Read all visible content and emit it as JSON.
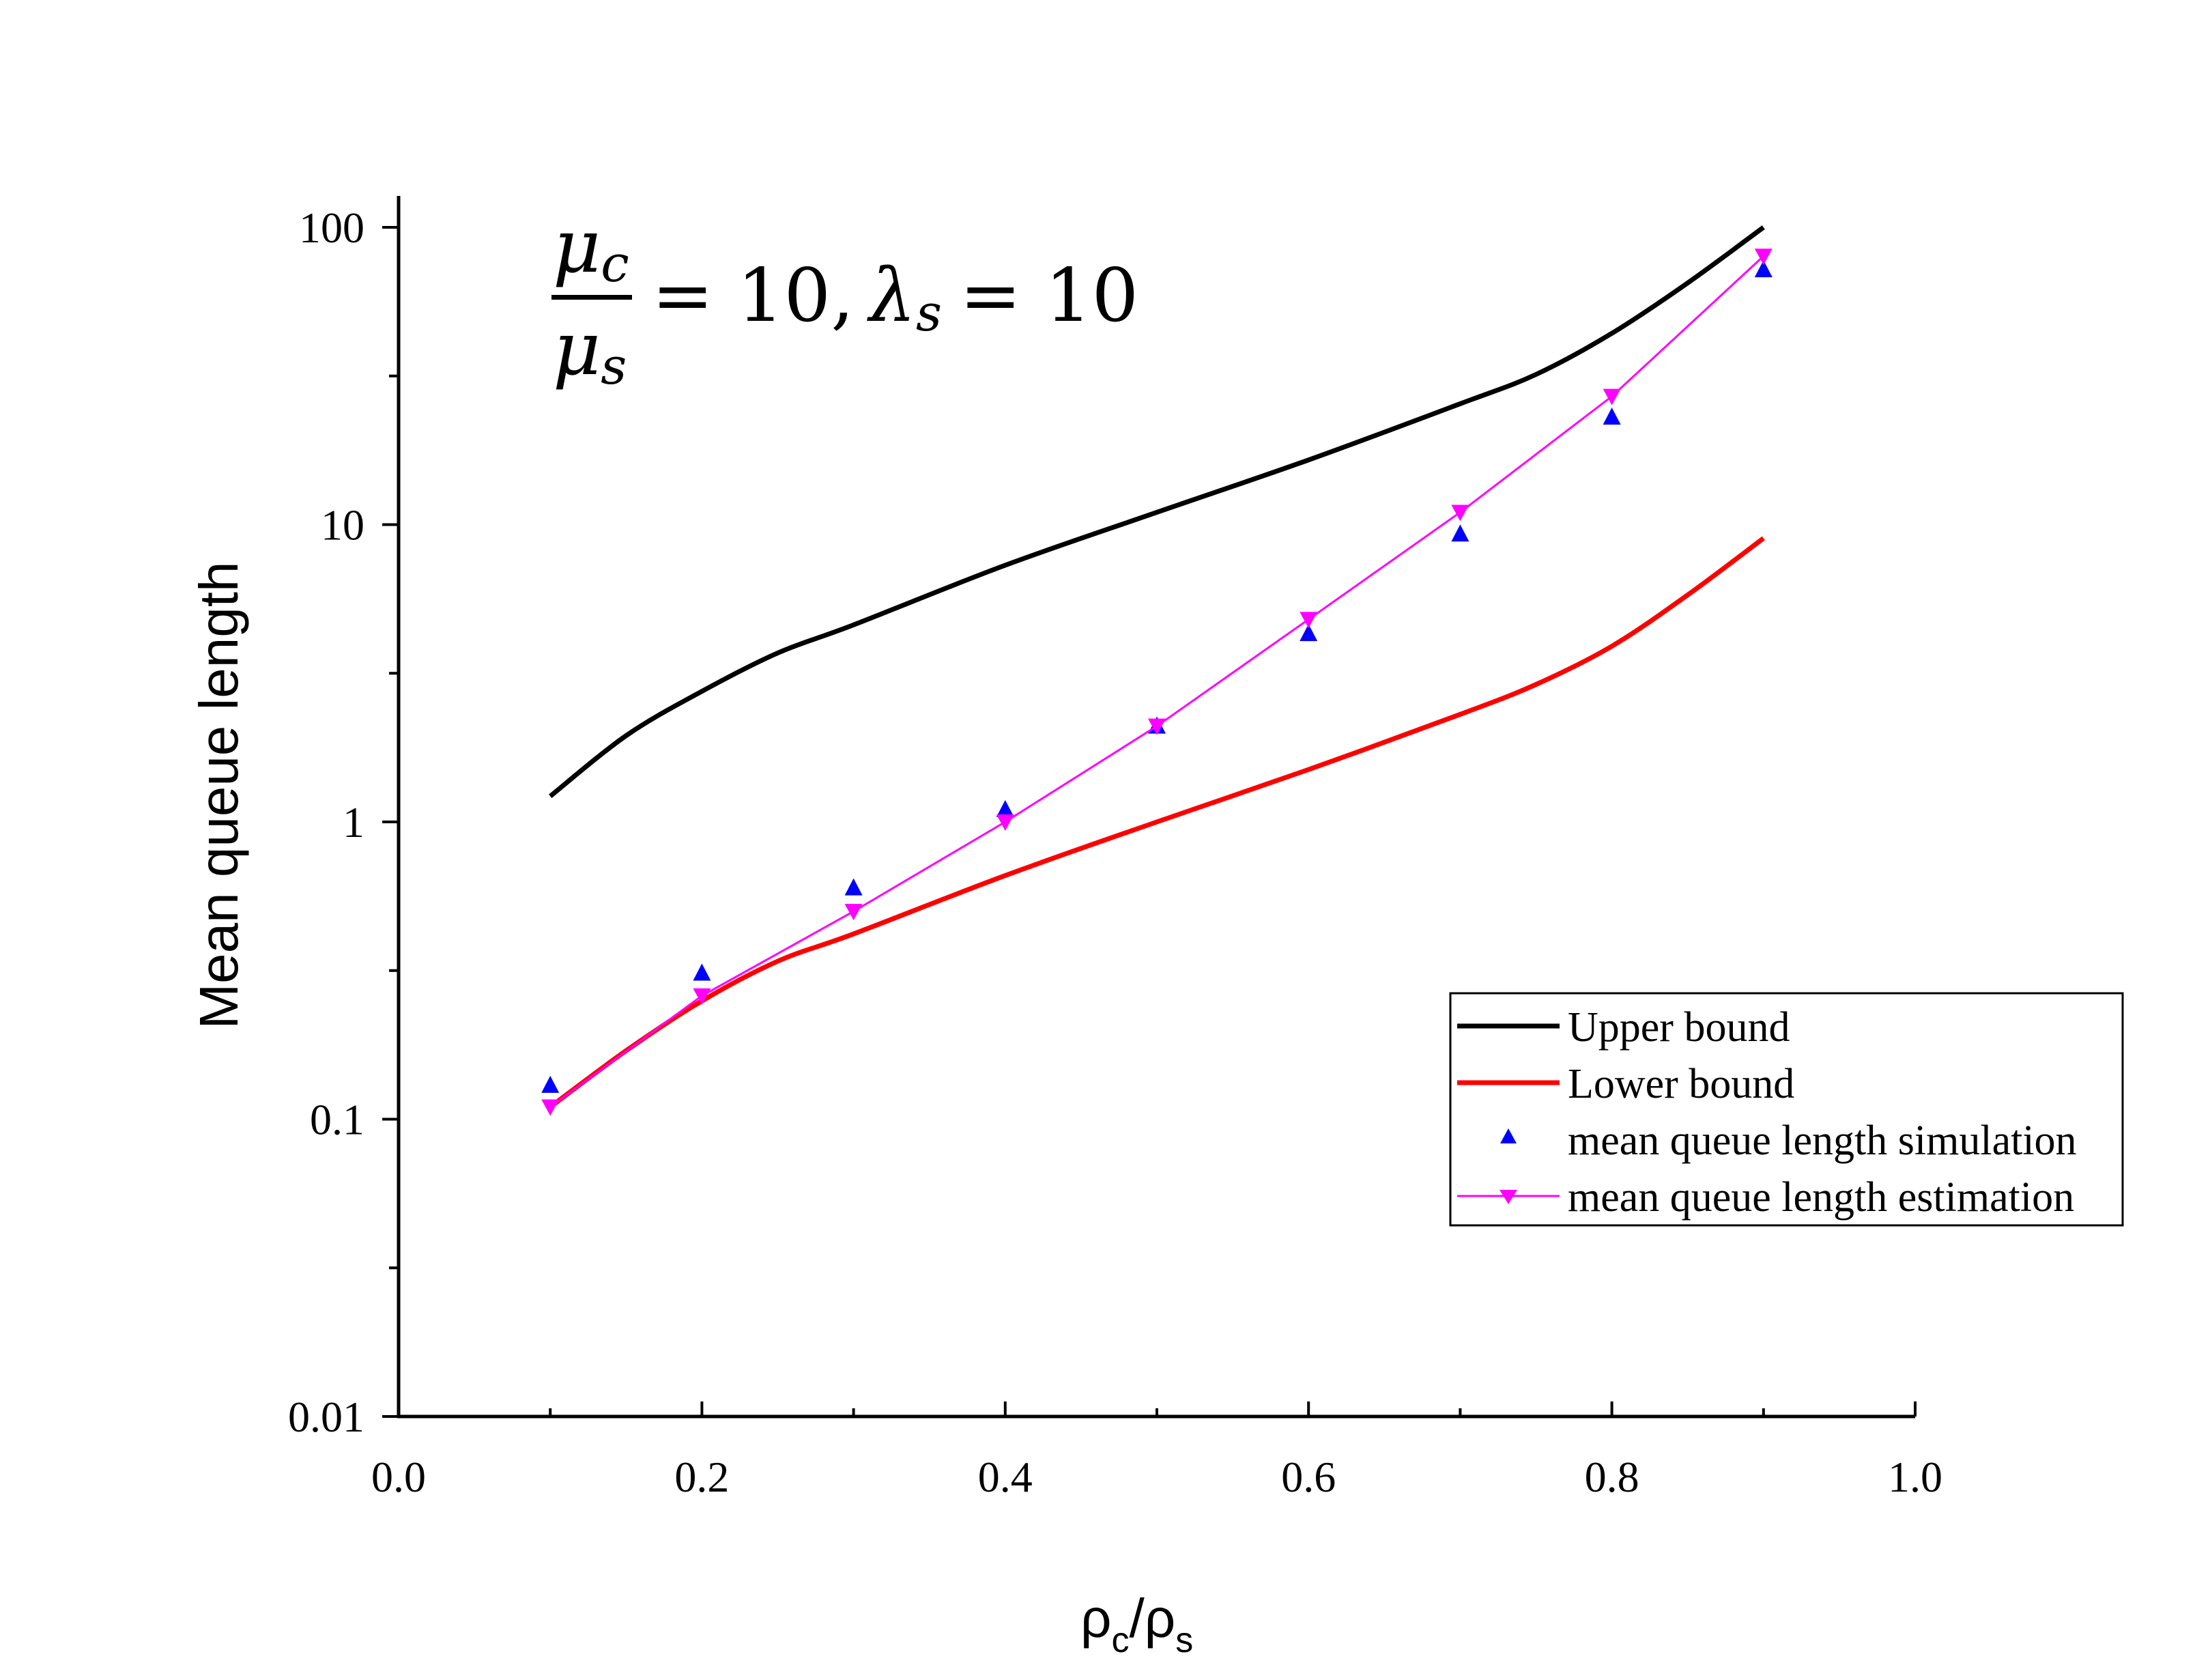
{
  "chart_data": {
    "type": "line",
    "title": "",
    "xlabel": "ρc/ρs",
    "xlabel_parts": {
      "main1": "ρ",
      "sub1": "c",
      "sep": "/",
      "main2": "ρ",
      "sub2": "s"
    },
    "ylabel": "Mean queue length",
    "xlim": [
      0.0,
      1.0
    ],
    "ylim": [
      0.01,
      100
    ],
    "yscale": "log",
    "x_ticks": [
      "0.0",
      "0.2",
      "0.4",
      "0.6",
      "0.8",
      "1.0"
    ],
    "x_tick_values": [
      0.0,
      0.2,
      0.4,
      0.6,
      0.8,
      1.0
    ],
    "y_ticks": [
      "0.01",
      "0.1",
      "1",
      "10",
      "100"
    ],
    "y_tick_values": [
      0.01,
      0.1,
      1,
      10,
      100
    ],
    "grid": false,
    "legend_position": "lower-right",
    "annotation": {
      "mu": "μ",
      "sub_c": "c",
      "sub_s": "s",
      "eq1": "= 10,",
      "lambda": "λ",
      "sub_lambda": "s",
      "eq2": "= 10"
    },
    "series": [
      {
        "name": "Upper bound",
        "style": "line",
        "color": "#000000",
        "x": [
          0.1,
          0.15,
          0.2,
          0.25,
          0.3,
          0.4,
          0.5,
          0.6,
          0.7,
          0.75,
          0.8,
          0.85,
          0.9
        ],
        "y": [
          1.22,
          1.95,
          2.75,
          3.7,
          4.6,
          7.3,
          11,
          16.5,
          25.5,
          32,
          44,
          65,
          100
        ]
      },
      {
        "name": "Lower bound",
        "style": "line",
        "color": "#ff0000",
        "x": [
          0.1,
          0.15,
          0.2,
          0.25,
          0.3,
          0.4,
          0.5,
          0.6,
          0.7,
          0.75,
          0.8,
          0.85,
          0.9
        ],
        "y": [
          0.11,
          0.17,
          0.25,
          0.34,
          0.42,
          0.66,
          1.0,
          1.5,
          2.3,
          2.9,
          3.9,
          5.8,
          9.0
        ]
      },
      {
        "name": "mean queue length simulation",
        "style": "marker",
        "marker": "triangle-up",
        "color": "#0000ff",
        "x": [
          0.1,
          0.2,
          0.3,
          0.4,
          0.5,
          0.6,
          0.7,
          0.8,
          0.9
        ],
        "y": [
          0.13,
          0.31,
          0.6,
          1.1,
          2.1,
          4.3,
          9.3,
          23,
          72
        ]
      },
      {
        "name": "mean queue length estimation",
        "style": "line+marker",
        "marker": "triangle-down",
        "color": "#ff00ff",
        "x": [
          0.1,
          0.2,
          0.3,
          0.4,
          0.5,
          0.6,
          0.7,
          0.8,
          0.9
        ],
        "y": [
          0.11,
          0.26,
          0.5,
          1.0,
          2.1,
          4.8,
          11,
          27,
          80
        ]
      }
    ]
  }
}
